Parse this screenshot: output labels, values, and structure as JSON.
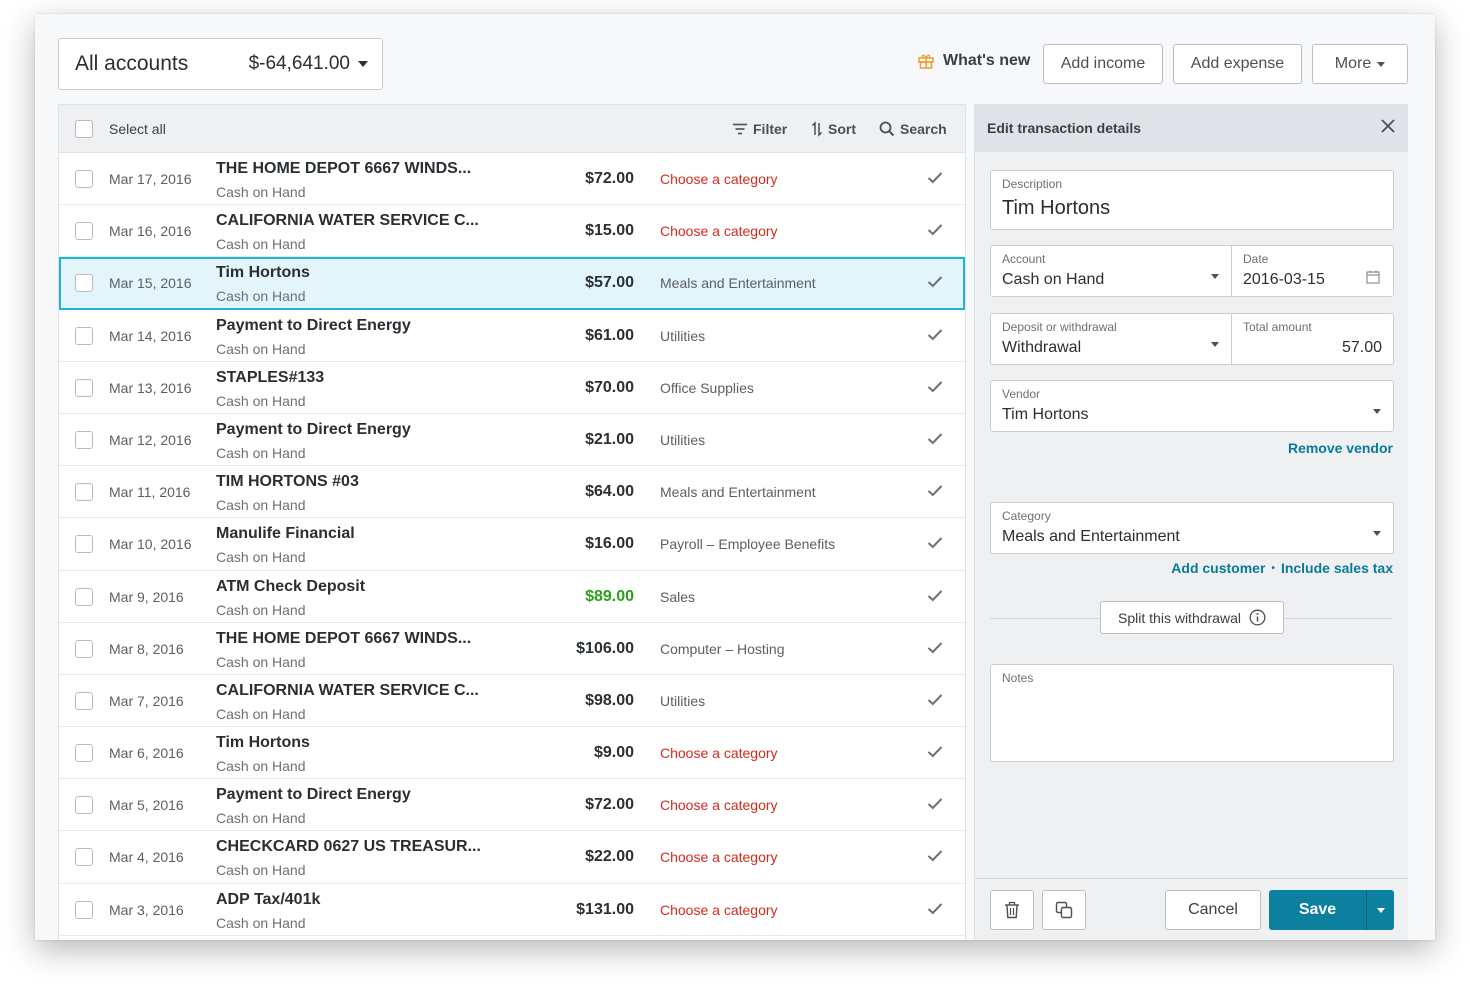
{
  "header": {
    "account_label": "All accounts",
    "account_balance": "$-64,641.00",
    "whats_new": "What's new",
    "add_income": "Add income",
    "add_expense": "Add expense",
    "more": "More"
  },
  "toolbar": {
    "select_all": "Select all",
    "filter": "Filter",
    "sort": "Sort",
    "search": "Search"
  },
  "transactions": [
    {
      "date": "Mar 17, 2016",
      "description": "THE HOME DEPOT 6667 WINDS...",
      "account": "Cash on Hand",
      "amount": "$72.00",
      "category": "Choose a category",
      "type": "expense",
      "categorized": false
    },
    {
      "date": "Mar 16, 2016",
      "description": "CALIFORNIA WATER SERVICE C...",
      "account": "Cash on Hand",
      "amount": "$15.00",
      "category": "Choose a category",
      "type": "expense",
      "categorized": false
    },
    {
      "date": "Mar 15, 2016",
      "description": "Tim Hortons",
      "account": "Cash on Hand",
      "amount": "$57.00",
      "category": "Meals and Entertainment",
      "type": "expense",
      "categorized": true,
      "selected": true
    },
    {
      "date": "Mar 14, 2016",
      "description": "Payment to Direct Energy",
      "account": "Cash on Hand",
      "amount": "$61.00",
      "category": "Utilities",
      "type": "expense",
      "categorized": true
    },
    {
      "date": "Mar 13, 2016",
      "description": "STAPLES#133",
      "account": "Cash on Hand",
      "amount": "$70.00",
      "category": "Office Supplies",
      "type": "expense",
      "categorized": true
    },
    {
      "date": "Mar 12, 2016",
      "description": "Payment to Direct Energy",
      "account": "Cash on Hand",
      "amount": "$21.00",
      "category": "Utilities",
      "type": "expense",
      "categorized": true
    },
    {
      "date": "Mar 11, 2016",
      "description": "TIM HORTONS #03",
      "account": "Cash on Hand",
      "amount": "$64.00",
      "category": "Meals and Entertainment",
      "type": "expense",
      "categorized": true
    },
    {
      "date": "Mar 10, 2016",
      "description": "Manulife Financial",
      "account": "Cash on Hand",
      "amount": "$16.00",
      "category": "Payroll – Employee Benefits",
      "type": "expense",
      "categorized": true
    },
    {
      "date": "Mar 9, 2016",
      "description": "ATM Check Deposit",
      "account": "Cash on Hand",
      "amount": "$89.00",
      "category": "Sales",
      "type": "income",
      "categorized": true
    },
    {
      "date": "Mar 8, 2016",
      "description": "THE HOME DEPOT 6667 WINDS...",
      "account": "Cash on Hand",
      "amount": "$106.00",
      "category": "Computer – Hosting",
      "type": "expense",
      "categorized": true
    },
    {
      "date": "Mar 7, 2016",
      "description": "CALIFORNIA WATER SERVICE C...",
      "account": "Cash on Hand",
      "amount": "$98.00",
      "category": "Utilities",
      "type": "expense",
      "categorized": true
    },
    {
      "date": "Mar 6, 2016",
      "description": "Tim Hortons",
      "account": "Cash on Hand",
      "amount": "$9.00",
      "category": "Choose a category",
      "type": "expense",
      "categorized": false
    },
    {
      "date": "Mar 5, 2016",
      "description": "Payment to Direct Energy",
      "account": "Cash on Hand",
      "amount": "$72.00",
      "category": "Choose a category",
      "type": "expense",
      "categorized": false
    },
    {
      "date": "Mar 4, 2016",
      "description": "CHECKCARD 0627 US TREASUR...",
      "account": "Cash on Hand",
      "amount": "$22.00",
      "category": "Choose a category",
      "type": "expense",
      "categorized": false
    },
    {
      "date": "Mar 3, 2016",
      "description": "ADP Tax/401k",
      "account": "Cash on Hand",
      "amount": "$131.00",
      "category": "Choose a category",
      "type": "expense",
      "categorized": false
    }
  ],
  "edit": {
    "title": "Edit transaction details",
    "description_label": "Description",
    "description_value": "Tim Hortons",
    "account_label": "Account",
    "account_value": "Cash on Hand",
    "date_label": "Date",
    "date_value": "2016-03-15",
    "deposit_label": "Deposit or withdrawal",
    "deposit_value": "Withdrawal",
    "total_label": "Total amount",
    "total_value": "57.00",
    "vendor_label": "Vendor",
    "vendor_value": "Tim Hortons",
    "remove_vendor": "Remove vendor",
    "category_label": "Category",
    "category_value": "Meals and Entertainment",
    "add_customer": "Add customer",
    "include_sales_tax": "Include sales tax",
    "link_separator": "•",
    "split": "Split this withdrawal",
    "notes_label": "Notes",
    "notes_value": "",
    "cancel": "Cancel",
    "save": "Save"
  },
  "colors": {
    "accent": "#0d7f9f",
    "income": "#2ca01c",
    "missing_category": "#d52b1e",
    "selected_row": "#e4f4fb",
    "selected_outline": "#1fb3d6"
  }
}
